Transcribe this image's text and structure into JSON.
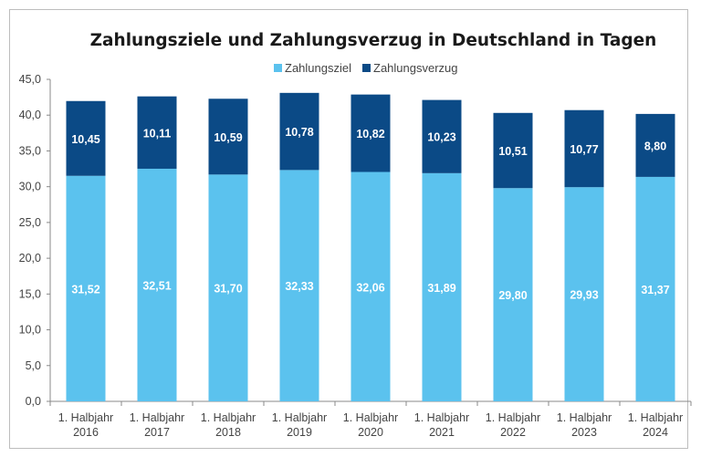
{
  "chart_data": {
    "type": "bar",
    "stacked": true,
    "title": "Zahlungsziele und Zahlungsverzug in Deutschland in Tagen",
    "xlabel": "",
    "ylabel": "",
    "ylim": [
      0,
      45
    ],
    "yticks": [
      "0,0",
      "5,0",
      "10,0",
      "15,0",
      "20,0",
      "25,0",
      "30,0",
      "35,0",
      "40,0",
      "45,0"
    ],
    "grid": false,
    "legend_position": "top",
    "categories": [
      [
        "1. Halbjahr",
        "2016"
      ],
      [
        "1. Halbjahr",
        "2017"
      ],
      [
        "1. Halbjahr",
        "2018"
      ],
      [
        "1. Halbjahr",
        "2019"
      ],
      [
        "1. Halbjahr",
        "2020"
      ],
      [
        "1. Halbjahr",
        "2021"
      ],
      [
        "1. Halbjahr",
        "2022"
      ],
      [
        "1. Halbjahr",
        "2023"
      ],
      [
        "1. Halbjahr",
        "2024"
      ]
    ],
    "series": [
      {
        "name": "Zahlungsziel",
        "color": "#5bc2ee",
        "values": [
          31.52,
          32.51,
          31.7,
          32.33,
          32.06,
          31.89,
          29.8,
          29.93,
          31.37
        ],
        "labels": [
          "31,52",
          "32,51",
          "31,70",
          "32,33",
          "32,06",
          "31,89",
          "29,80",
          "29,93",
          "31,37"
        ]
      },
      {
        "name": "Zahlungsverzug",
        "color": "#0b4a86",
        "values": [
          10.45,
          10.11,
          10.59,
          10.78,
          10.82,
          10.23,
          10.51,
          10.77,
          8.8
        ],
        "labels": [
          "10,45",
          "10,11",
          "10,59",
          "10,78",
          "10,82",
          "10,23",
          "10,51",
          "10,77",
          "8,80"
        ]
      }
    ]
  }
}
